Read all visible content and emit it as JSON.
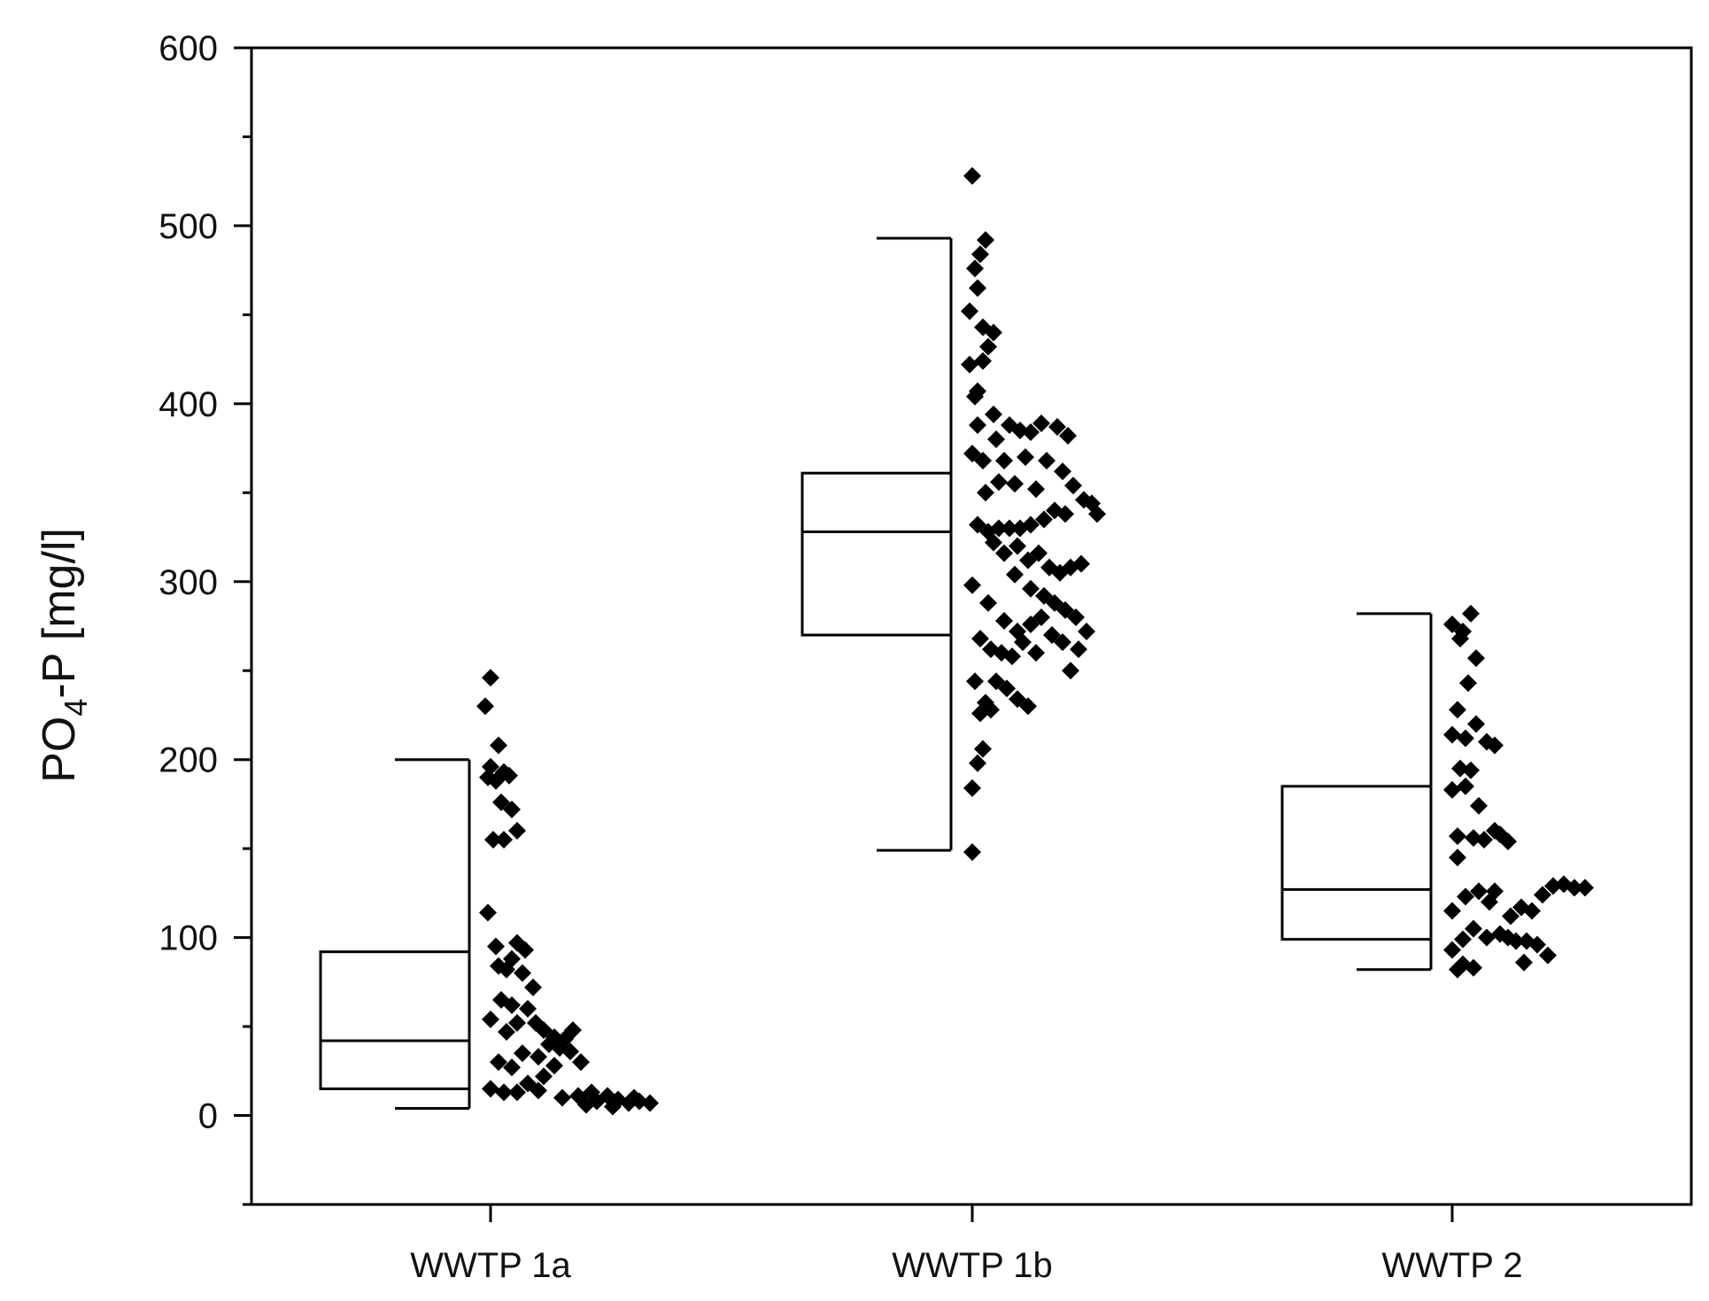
{
  "chart_data": {
    "type": "box-scatter",
    "title": "",
    "xlabel": "",
    "ylabel_main": "PO",
    "ylabel_sub": "4",
    "ylabel_rest": "-P [mg/l]",
    "ylim": [
      -50,
      600
    ],
    "yticks": [
      "0",
      "100",
      "200",
      "300",
      "400",
      "500",
      "600"
    ],
    "categories": [
      "WWTP 1a",
      "WWTP 1b",
      "WWTP 2"
    ],
    "boxes": [
      {
        "category": "WWTP 1a",
        "whisker_low": 4,
        "q1": 15,
        "median": 42,
        "q3": 92,
        "whisker_high": 200
      },
      {
        "category": "WWTP 1b",
        "whisker_low": 149,
        "q1": 270,
        "median": 328,
        "q3": 361,
        "whisker_high": 493
      },
      {
        "category": "WWTP 2",
        "whisker_low": 82,
        "q1": 99,
        "median": 127,
        "q3": 185,
        "whisker_high": 282
      }
    ],
    "series": [
      {
        "category": "WWTP 1a",
        "points": [
          [
            0.0,
            246
          ],
          [
            -0.02,
            230
          ],
          [
            0.03,
            208
          ],
          [
            0.0,
            196
          ],
          [
            0.05,
            193
          ],
          [
            -0.01,
            190
          ],
          [
            0.02,
            188
          ],
          [
            0.07,
            191
          ],
          [
            0.04,
            176
          ],
          [
            0.08,
            172
          ],
          [
            0.01,
            155
          ],
          [
            0.05,
            155
          ],
          [
            0.1,
            160
          ],
          [
            -0.01,
            114
          ],
          [
            0.02,
            95
          ],
          [
            0.1,
            97
          ],
          [
            0.13,
            93
          ],
          [
            0.08,
            88
          ],
          [
            0.03,
            84
          ],
          [
            0.06,
            82
          ],
          [
            0.12,
            80
          ],
          [
            0.16,
            72
          ],
          [
            0.04,
            65
          ],
          [
            0.08,
            62
          ],
          [
            0.14,
            60
          ],
          [
            0.0,
            54
          ],
          [
            0.1,
            52
          ],
          [
            0.17,
            52
          ],
          [
            0.2,
            48
          ],
          [
            0.24,
            44
          ],
          [
            0.28,
            43
          ],
          [
            0.31,
            48
          ],
          [
            0.06,
            47
          ],
          [
            0.22,
            40
          ],
          [
            0.26,
            38
          ],
          [
            0.3,
            36
          ],
          [
            0.12,
            35
          ],
          [
            0.18,
            33
          ],
          [
            0.03,
            30
          ],
          [
            0.24,
            28
          ],
          [
            0.34,
            30
          ],
          [
            0.08,
            27
          ],
          [
            0.2,
            22
          ],
          [
            0.14,
            18
          ],
          [
            0.0,
            15
          ],
          [
            0.05,
            13
          ],
          [
            0.1,
            13
          ],
          [
            0.18,
            14
          ],
          [
            0.27,
            10
          ],
          [
            0.33,
            11
          ],
          [
            0.36,
            6
          ],
          [
            0.4,
            8
          ],
          [
            0.44,
            11
          ],
          [
            0.48,
            9
          ],
          [
            0.52,
            7
          ],
          [
            0.56,
            8
          ],
          [
            0.6,
            7
          ],
          [
            0.38,
            13
          ],
          [
            0.46,
            5
          ],
          [
            0.54,
            10
          ]
        ]
      },
      {
        "category": "WWTP 1b",
        "points": [
          [
            0.0,
            528
          ],
          [
            0.05,
            492
          ],
          [
            0.03,
            484
          ],
          [
            0.01,
            476
          ],
          [
            0.02,
            465
          ],
          [
            -0.01,
            452
          ],
          [
            0.04,
            443
          ],
          [
            0.08,
            440
          ],
          [
            0.06,
            432
          ],
          [
            0.04,
            424
          ],
          [
            -0.01,
            422
          ],
          [
            0.02,
            407
          ],
          [
            0.01,
            404
          ],
          [
            0.08,
            394
          ],
          [
            0.02,
            388
          ],
          [
            0.14,
            388
          ],
          [
            0.18,
            385
          ],
          [
            0.22,
            384
          ],
          [
            0.26,
            389
          ],
          [
            0.32,
            387
          ],
          [
            0.36,
            382
          ],
          [
            0.09,
            380
          ],
          [
            0.0,
            372
          ],
          [
            0.04,
            368
          ],
          [
            0.12,
            368
          ],
          [
            0.2,
            370
          ],
          [
            0.28,
            368
          ],
          [
            0.34,
            362
          ],
          [
            0.38,
            354
          ],
          [
            0.1,
            356
          ],
          [
            0.16,
            355
          ],
          [
            0.24,
            352
          ],
          [
            0.05,
            350
          ],
          [
            0.42,
            346
          ],
          [
            0.45,
            344
          ],
          [
            0.47,
            338
          ],
          [
            0.02,
            332
          ],
          [
            0.06,
            328
          ],
          [
            0.1,
            330
          ],
          [
            0.14,
            330
          ],
          [
            0.18,
            330
          ],
          [
            0.22,
            332
          ],
          [
            0.27,
            335
          ],
          [
            0.31,
            340
          ],
          [
            0.35,
            338
          ],
          [
            0.08,
            322
          ],
          [
            0.12,
            316
          ],
          [
            0.17,
            320
          ],
          [
            0.21,
            312
          ],
          [
            0.25,
            316
          ],
          [
            0.29,
            308
          ],
          [
            0.33,
            305
          ],
          [
            0.37,
            308
          ],
          [
            0.41,
            310
          ],
          [
            0.0,
            298
          ],
          [
            0.16,
            304
          ],
          [
            0.22,
            296
          ],
          [
            0.27,
            292
          ],
          [
            0.31,
            288
          ],
          [
            0.35,
            284
          ],
          [
            0.39,
            280
          ],
          [
            0.43,
            272
          ],
          [
            0.06,
            288
          ],
          [
            0.12,
            278
          ],
          [
            0.17,
            272
          ],
          [
            0.22,
            276
          ],
          [
            0.26,
            280
          ],
          [
            0.3,
            270
          ],
          [
            0.34,
            266
          ],
          [
            0.4,
            262
          ],
          [
            0.03,
            268
          ],
          [
            0.07,
            262
          ],
          [
            0.11,
            260
          ],
          [
            0.15,
            258
          ],
          [
            0.19,
            266
          ],
          [
            0.24,
            260
          ],
          [
            0.37,
            250
          ],
          [
            0.09,
            244
          ],
          [
            0.13,
            240
          ],
          [
            0.01,
            244
          ],
          [
            0.05,
            232
          ],
          [
            0.17,
            234
          ],
          [
            0.21,
            230
          ],
          [
            0.03,
            226
          ],
          [
            0.07,
            228
          ],
          [
            0.04,
            206
          ],
          [
            0.02,
            198
          ],
          [
            0.0,
            184
          ],
          [
            0.0,
            148
          ]
        ]
      },
      {
        "category": "WWTP 2",
        "points": [
          [
            0.07,
            282
          ],
          [
            0.0,
            276
          ],
          [
            0.04,
            272
          ],
          [
            0.03,
            268
          ],
          [
            0.09,
            257
          ],
          [
            0.06,
            243
          ],
          [
            0.02,
            228
          ],
          [
            0.09,
            220
          ],
          [
            0.0,
            214
          ],
          [
            0.05,
            212
          ],
          [
            0.13,
            210
          ],
          [
            0.16,
            208
          ],
          [
            0.03,
            195
          ],
          [
            0.07,
            194
          ],
          [
            0.0,
            183
          ],
          [
            0.05,
            185
          ],
          [
            0.1,
            174
          ],
          [
            0.16,
            160
          ],
          [
            0.18,
            158
          ],
          [
            0.02,
            157
          ],
          [
            0.08,
            156
          ],
          [
            0.12,
            155
          ],
          [
            0.21,
            154
          ],
          [
            0.02,
            145
          ],
          [
            0.1,
            126
          ],
          [
            0.16,
            126
          ],
          [
            0.05,
            123
          ],
          [
            0.14,
            120
          ],
          [
            0.0,
            115
          ],
          [
            0.26,
            117
          ],
          [
            0.3,
            115
          ],
          [
            0.22,
            112
          ],
          [
            0.34,
            124
          ],
          [
            0.38,
            129
          ],
          [
            0.42,
            130
          ],
          [
            0.46,
            128
          ],
          [
            0.5,
            128
          ],
          [
            0.08,
            105
          ],
          [
            0.18,
            102
          ],
          [
            0.13,
            100
          ],
          [
            0.21,
            100
          ],
          [
            0.24,
            98
          ],
          [
            0.28,
            98
          ],
          [
            0.04,
            99
          ],
          [
            0.32,
            96
          ],
          [
            0.0,
            93
          ],
          [
            0.36,
            90
          ],
          [
            0.04,
            85
          ],
          [
            0.08,
            83
          ],
          [
            0.27,
            86
          ],
          [
            0.02,
            82
          ]
        ]
      }
    ],
    "grid": false,
    "legend": "none",
    "colors": {
      "box": "#000000",
      "marker": "#000000",
      "axis": "#000000"
    }
  }
}
